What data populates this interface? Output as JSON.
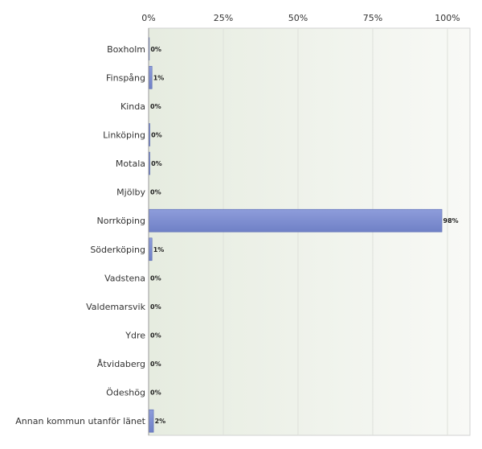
{
  "chart_data": {
    "type": "bar",
    "orientation": "horizontal",
    "title": "",
    "xlabel": "",
    "ylabel": "",
    "xlim": [
      0,
      100
    ],
    "x_ticks": [
      "0%",
      "25%",
      "50%",
      "75%",
      "100%"
    ],
    "grid": true,
    "categories": [
      "Boxholm",
      "Finspång",
      "Kinda",
      "Linköping",
      "Motala",
      "Mjölby",
      "Norrköping",
      "Söderköping",
      "Vadstena",
      "Valdemarsvik",
      "Ydre",
      "Åtvidaberg",
      "Ödeshög",
      "Annan kommun utanför länet"
    ],
    "values": [
      0.1,
      1,
      0,
      0.3,
      0.3,
      0,
      98,
      1,
      0,
      0,
      0,
      0,
      0,
      1.5
    ],
    "data_labels": [
      "0%",
      "1%",
      "0%",
      "0%",
      "0%",
      "0%",
      "98%",
      "1%",
      "0%",
      "0%",
      "0%",
      "0%",
      "0%",
      "2%"
    ],
    "bar_color": "#7b8cd0"
  }
}
